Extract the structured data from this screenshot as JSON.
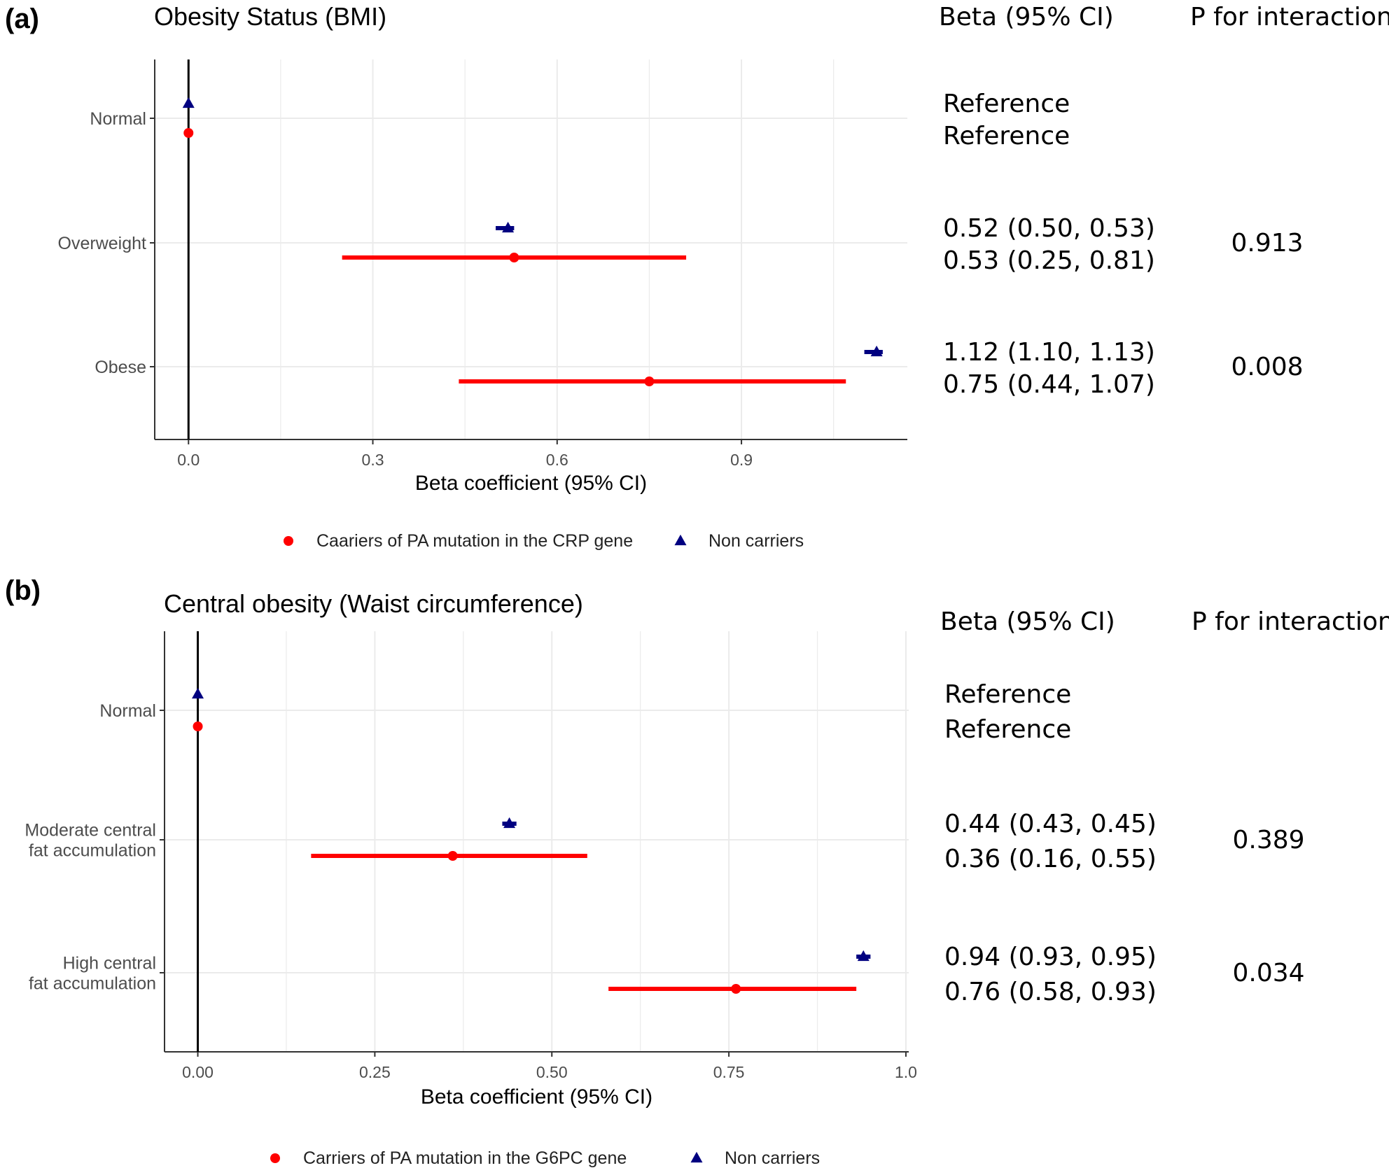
{
  "colors": {
    "carriers": "#ff0000",
    "non_carriers": "#000080",
    "grid": "#ebebeb",
    "axis": "#333333",
    "reference_line": "#000000"
  },
  "chart_data": [
    {
      "type": "forest",
      "panel_label": "(a)",
      "title": "Obesity Status (BMI)",
      "xlabel": "Beta coefficient (95% CI)",
      "ylabel": "",
      "xlim": [
        -0.055,
        1.17
      ],
      "xticks": [
        0.0,
        0.3,
        0.6,
        0.9
      ],
      "xtick_labels": [
        "0.0",
        "0.3",
        "0.6",
        "0.9"
      ],
      "reference_line": 0,
      "categories": [
        "Normal",
        "Overweight",
        "Obese"
      ],
      "category_labels": [
        [
          "Normal"
        ],
        [
          "Overweight"
        ],
        [
          "Obese"
        ]
      ],
      "column_headers": {
        "beta": "Beta (95% CI)",
        "p": "P for interaction"
      },
      "series": [
        {
          "name": "Non carriers",
          "marker": "triangle",
          "values": [
            0,
            0.52,
            1.12
          ],
          "ci_low": [
            0,
            0.5,
            1.1
          ],
          "ci_high": [
            0,
            0.53,
            1.13
          ],
          "labels": [
            "Reference",
            "0.52 (0.50, 0.53)",
            "1.12 (1.10, 1.13)"
          ]
        },
        {
          "name": "Caariers of PA mutation in the CRP gene",
          "marker": "circle",
          "values": [
            0,
            0.53,
            0.75
          ],
          "ci_low": [
            0,
            0.25,
            0.44
          ],
          "ci_high": [
            0,
            0.81,
            1.07
          ],
          "labels": [
            "Reference",
            "0.53 (0.25, 0.81)",
            "0.75 (0.44, 1.07)"
          ]
        }
      ],
      "p_interaction": [
        "",
        "0.913",
        "0.008"
      ],
      "legend": [
        "Caariers of PA mutation in the CRP gene",
        "Non carriers"
      ]
    },
    {
      "type": "forest",
      "panel_label": "(b)",
      "title": "Central obesity (Waist circumference)",
      "xlabel": "Beta coefficient (95% CI)",
      "ylabel": "",
      "xlim": [
        -0.047,
        1.004
      ],
      "xticks": [
        0.0,
        0.25,
        0.5,
        0.75,
        1.0
      ],
      "xtick_labels": [
        "0.00",
        "0.25",
        "0.50",
        "0.75",
        "1.0"
      ],
      "reference_line": 0,
      "categories": [
        "Normal",
        "Moderate central fat accumulation",
        "High central fat accumulation"
      ],
      "category_labels": [
        [
          "Normal"
        ],
        [
          "Moderate central",
          "fat accumulation"
        ],
        [
          "High central",
          "fat accumulation"
        ]
      ],
      "column_headers": {
        "beta": "Beta (95% CI)",
        "p": "P for interaction"
      },
      "series": [
        {
          "name": "Non carriers",
          "marker": "triangle",
          "values": [
            0,
            0.44,
            0.94
          ],
          "ci_low": [
            0,
            0.43,
            0.93
          ],
          "ci_high": [
            0,
            0.45,
            0.95
          ],
          "labels": [
            "Reference",
            "0.44 (0.43, 0.45)",
            "0.94 (0.93, 0.95)"
          ]
        },
        {
          "name": "Carriers of PA mutation in the G6PC gene",
          "marker": "circle",
          "values": [
            0,
            0.36,
            0.76
          ],
          "ci_low": [
            0,
            0.16,
            0.58
          ],
          "ci_high": [
            0,
            0.55,
            0.93
          ],
          "labels": [
            "Reference",
            "0.36 (0.16, 0.55)",
            "0.76 (0.58, 0.93)"
          ]
        }
      ],
      "p_interaction": [
        "",
        "0.389",
        "0.034"
      ],
      "legend": [
        "Carriers of PA mutation in the G6PC gene",
        "Non carriers"
      ]
    }
  ]
}
